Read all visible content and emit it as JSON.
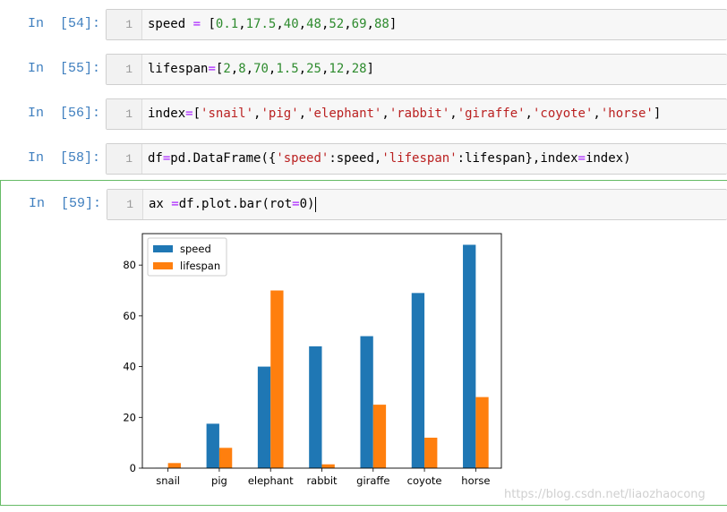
{
  "cells": [
    {
      "prompt": "In  [54]:",
      "line_no": "1"
    },
    {
      "prompt": "In  [55]:",
      "line_no": "1"
    },
    {
      "prompt": "In  [56]:",
      "line_no": "1"
    },
    {
      "prompt": "In  [58]:",
      "line_no": "1"
    },
    {
      "prompt": "In  [59]:",
      "line_no": "1"
    }
  ],
  "code": {
    "c54": {
      "var": "speed",
      "assign": " = ",
      "values": [
        "0.1",
        "17.5",
        "40",
        "48",
        "52",
        "69",
        "88"
      ]
    },
    "c55": {
      "var": "lifespan",
      "assign": "=",
      "values": [
        "2",
        "8",
        "70",
        "1.5",
        "25",
        "12",
        "28"
      ]
    },
    "c56": {
      "var": "index",
      "assign": "=",
      "values": [
        "'snail'",
        "'pig'",
        "'elephant'",
        "'rabbit'",
        "'giraffe'",
        "'coyote'",
        "'horse'"
      ]
    },
    "c58": {
      "p1": "df",
      "eq": "=",
      "p2": "pd.DataFrame({",
      "k1": "'speed'",
      "colon1": ":speed,",
      "k2": "'lifespan'",
      "colon2": ":lifespan},index",
      "eq2": "=",
      "p3": "index)"
    },
    "c59": {
      "p1": "ax ",
      "eq": "=",
      "p2": "df.plot.bar(rot",
      "eq2": "=",
      "p3": "0)"
    }
  },
  "chart_data": {
    "type": "bar",
    "categories": [
      "snail",
      "pig",
      "elephant",
      "rabbit",
      "giraffe",
      "coyote",
      "horse"
    ],
    "series": [
      {
        "name": "speed",
        "values": [
          0.1,
          17.5,
          40,
          48,
          52,
          69,
          88
        ],
        "color": "#1f77b4"
      },
      {
        "name": "lifespan",
        "values": [
          2,
          8,
          70,
          1.5,
          25,
          12,
          28
        ],
        "color": "#ff7f0e"
      }
    ],
    "ylim": [
      0,
      92.4
    ],
    "yticks": [
      0,
      20,
      40,
      60,
      80
    ],
    "legend_position": "top-left",
    "grid": false
  },
  "watermark": "https://blog.csdn.net/liaozhaocong"
}
